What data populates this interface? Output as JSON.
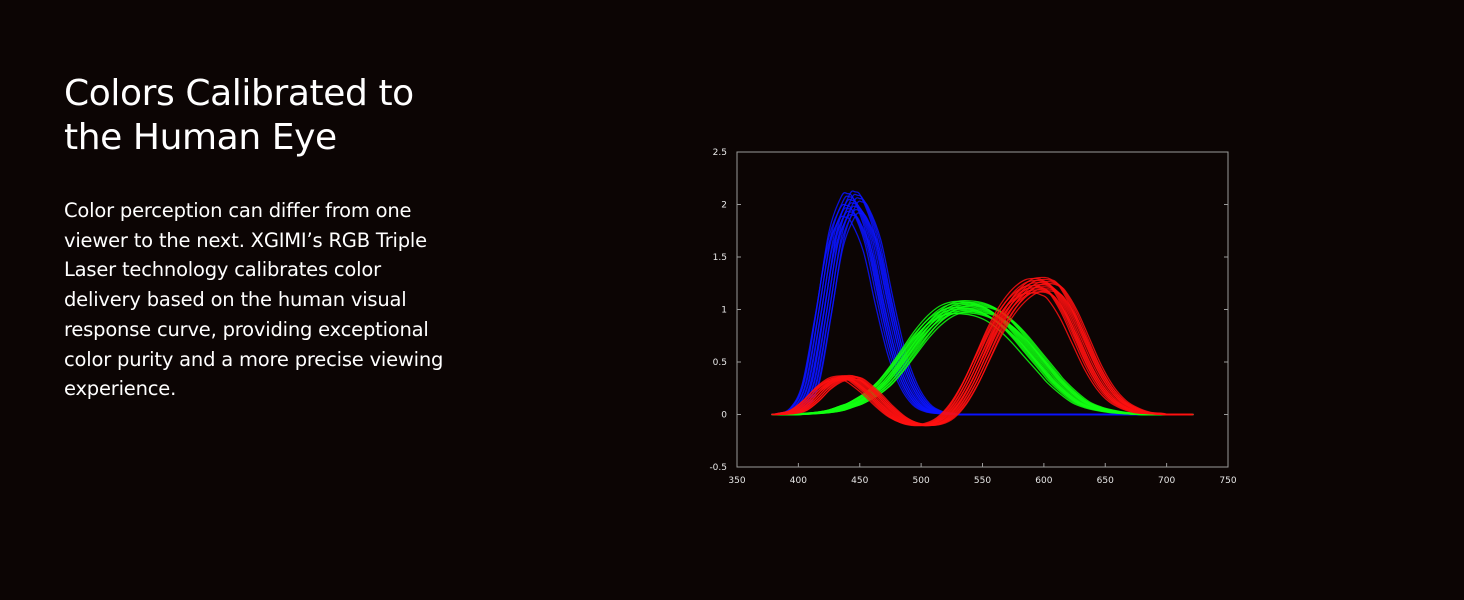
{
  "headline": {
    "lines": [
      "Colors Calibrated to",
      "the Human Eye"
    ]
  },
  "body": {
    "lines": [
      "Color perception can differ from one",
      "viewer to the next. XGIMI’s RGB Triple",
      "Laser technology calibrates color",
      "delivery based on the human visual",
      "response curve, providing exceptional",
      "color purity and a more precise viewing",
      "experience."
    ]
  },
  "chart_data": {
    "type": "line",
    "title": "",
    "xlabel": "",
    "ylabel": "",
    "xlim": [
      350,
      750
    ],
    "ylim": [
      -0.5,
      2.5
    ],
    "x_ticks": [
      "350",
      "400",
      "450",
      "500",
      "550",
      "600",
      "650",
      "700",
      "750"
    ],
    "y_ticks": [
      "2.5",
      "2",
      "1.5",
      "1",
      "0.5",
      "0",
      "-0.5"
    ],
    "grid": false,
    "legend": "none",
    "x": [
      380,
      390,
      400,
      410,
      420,
      430,
      440,
      445,
      450,
      460,
      470,
      480,
      490,
      500,
      510,
      520,
      530,
      540,
      550,
      560,
      570,
      580,
      590,
      600,
      605,
      610,
      620,
      630,
      640,
      650,
      660,
      670,
      680,
      690,
      700,
      710,
      720
    ],
    "series": [
      {
        "color": "#0a14ff",
        "values": [
          0.0,
          0.01,
          0.06,
          0.3,
          0.95,
          1.65,
          1.97,
          2.0,
          1.95,
          1.65,
          1.1,
          0.6,
          0.28,
          0.1,
          0.03,
          0.01,
          0.0,
          0.0,
          0.0,
          0.0,
          0.0,
          0.0,
          0.0,
          0.0,
          0.0,
          0.0,
          0.0,
          0.0,
          0.0,
          0.0,
          0.0,
          0.0,
          0.0,
          0.0,
          0.0,
          0.0,
          0.0
        ]
      },
      {
        "color": "#10ff10",
        "values": [
          0.0,
          0.0,
          0.0,
          0.01,
          0.02,
          0.04,
          0.08,
          0.1,
          0.13,
          0.2,
          0.3,
          0.44,
          0.6,
          0.76,
          0.89,
          0.98,
          1.02,
          1.02,
          1.0,
          0.95,
          0.86,
          0.74,
          0.6,
          0.46,
          0.39,
          0.32,
          0.21,
          0.12,
          0.07,
          0.04,
          0.02,
          0.01,
          0.0,
          0.0,
          0.0,
          0.0,
          0.0
        ]
      },
      {
        "color": "#ff1010",
        "values": [
          0.0,
          0.01,
          0.04,
          0.13,
          0.25,
          0.33,
          0.35,
          0.34,
          0.3,
          0.2,
          0.08,
          -0.02,
          -0.08,
          -0.1,
          -0.09,
          -0.03,
          0.1,
          0.3,
          0.55,
          0.8,
          1.0,
          1.14,
          1.22,
          1.23,
          1.21,
          1.17,
          0.98,
          0.72,
          0.46,
          0.26,
          0.13,
          0.06,
          0.02,
          0.01,
          0.0,
          0.0,
          0.0
        ]
      }
    ]
  }
}
